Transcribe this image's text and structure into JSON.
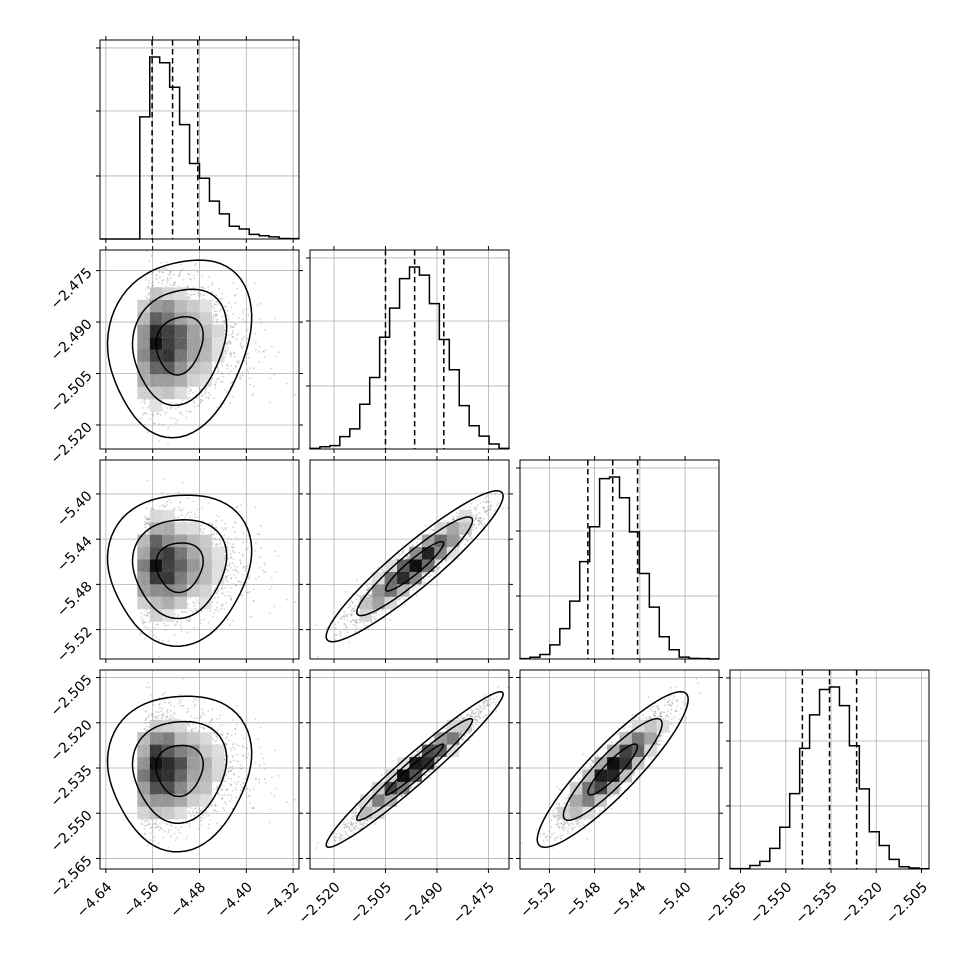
{
  "chart_data": {
    "type": "corner",
    "colors": {
      "density": "#000000",
      "scatter": "#808080",
      "grid": "#b0b0b0",
      "lines": "#000000"
    },
    "grid": true,
    "variables": [
      {
        "mean": -4.522,
        "sd": 0.04,
        "skew": 0.9,
        "xlim": [
          -4.65,
          -4.31
        ],
        "ticks": [
          -4.64,
          -4.56,
          -4.48,
          -4.4,
          -4.32
        ],
        "tick_labels": [
          "−4.64",
          "−4.56",
          "−4.48",
          "−4.40",
          "−4.32"
        ]
      },
      {
        "mean": -2.4965,
        "sd": 0.0085,
        "skew": 0,
        "xlim": [
          -2.527,
          -2.469
        ],
        "ticks": [
          -2.52,
          -2.505,
          -2.49,
          -2.475
        ],
        "tick_labels": [
          "−2.520",
          "−2.505",
          "−2.490",
          "−2.475"
        ]
      },
      {
        "mean": -5.464,
        "sd": 0.022,
        "skew": 0,
        "xlim": [
          -5.546,
          -5.37
        ],
        "ticks": [
          -5.52,
          -5.48,
          -5.44,
          -5.4
        ],
        "tick_labels": [
          "−5.52",
          "−5.48",
          "−5.44",
          "−5.40"
        ]
      },
      {
        "mean": -2.5355,
        "sd": 0.0085,
        "skew": 0,
        "xlim": [
          -2.5685,
          -2.5025
        ],
        "ticks": [
          -2.565,
          -2.55,
          -2.535,
          -2.52,
          -2.505
        ],
        "tick_labels": [
          "−2.565",
          "−2.550",
          "−2.535",
          "−2.520",
          "−2.505"
        ]
      }
    ],
    "quantiles": [
      {
        "q16": -4.561,
        "q50": -4.526,
        "q84": -4.483
      },
      {
        "q16": -2.505,
        "q50": -2.4965,
        "q84": -2.488
      },
      {
        "q16": -5.486,
        "q50": -5.464,
        "q84": -5.442
      },
      {
        "q16": -2.5445,
        "q50": -2.5355,
        "q84": -2.5265
      }
    ],
    "correlations": [
      [
        1.0,
        0.15,
        0.05,
        0.05
      ],
      [
        0.15,
        1.0,
        0.93,
        0.97
      ],
      [
        0.05,
        0.93,
        1.0,
        0.9
      ],
      [
        0.05,
        0.97,
        0.9,
        1.0
      ]
    ],
    "histogram_bins": 20,
    "contour_levels": [
      0.39,
      0.86,
      0.99
    ]
  }
}
